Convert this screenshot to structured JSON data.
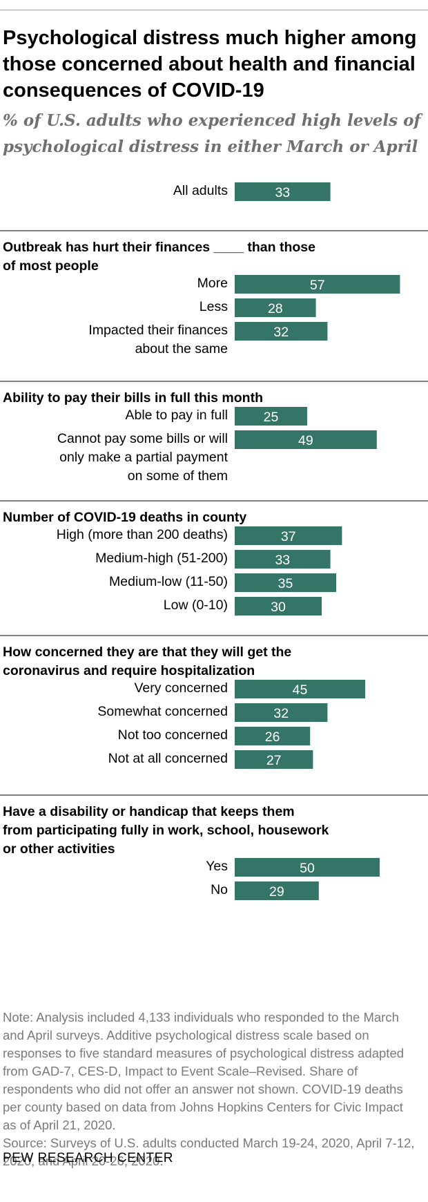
{
  "title": "Psychological distress much higher among those concerned about health and financial consequences of COVID-19",
  "subtitle": "% of U.S. adults who experienced high levels of psychological distress in either March or April",
  "colors": {
    "bar": "#357567",
    "bar_text": "#ffffff",
    "rule": "#000000"
  },
  "chart_data": {
    "type": "bar",
    "orientation": "horizontal",
    "value_labels": true,
    "groups": [
      {
        "heading": "",
        "rows": [
          {
            "label": [
              "All adults"
            ],
            "value": 33
          }
        ]
      },
      {
        "heading": [
          "Outbreak has hurt their finances ____ than those",
          "of most people"
        ],
        "rows": [
          {
            "label": [
              "More"
            ],
            "value": 57
          },
          {
            "label": [
              "Less"
            ],
            "value": 28
          },
          {
            "label": [
              "Impacted their finances",
              "about the same"
            ],
            "value": 32
          }
        ]
      },
      {
        "heading": [
          "Ability to pay their bills in full this month"
        ],
        "rows": [
          {
            "label": [
              "Able to pay in full"
            ],
            "value": 25
          },
          {
            "label": [
              "Cannot pay some bills or will",
              "only make a partial payment",
              "on some of them"
            ],
            "value": 49
          }
        ]
      },
      {
        "heading": [
          "Number of COVID-19 deaths in county"
        ],
        "rows": [
          {
            "label": [
              "High (more than 200 deaths)"
            ],
            "value": 37
          },
          {
            "label": [
              "Medium-high (51-200)"
            ],
            "value": 33
          },
          {
            "label": [
              "Medium-low (11-50)"
            ],
            "value": 35
          },
          {
            "label": [
              "Low (0-10)"
            ],
            "value": 30
          }
        ]
      },
      {
        "heading": [
          "How concerned they are that they will get the",
          "coronavirus and require hospitalization"
        ],
        "rows": [
          {
            "label": [
              "Very concerned"
            ],
            "value": 45
          },
          {
            "label": [
              "Somewhat concerned"
            ],
            "value": 32
          },
          {
            "label": [
              "Not too concerned"
            ],
            "value": 26
          },
          {
            "label": [
              "Not at all concerned"
            ],
            "value": 27
          }
        ]
      },
      {
        "heading": [
          "Have a disability or handicap that keeps them",
          "from participating fully in work, school, housework",
          "or other activities"
        ],
        "rows": [
          {
            "label": [
              "Yes"
            ],
            "value": 50
          },
          {
            "label": [
              "No"
            ],
            "value": 29
          }
        ]
      }
    ]
  },
  "note": "Note: Analysis included 4,133 individuals who responded to the March and April surveys. Additive psychological distress scale based on responses to five standard measures of psychological distress adapted from GAD-7, CES-D, Impact to Event Scale–Revised. Share of respondents who did not offer an answer not shown. COVID-19 deaths per county based on data from Johns Hopkins Centers for Civic Impact as of April 21, 2020.",
  "source": "Source: Surveys of  U.S. adults conducted March 19-24, 2020, April 7-12, 2020, and April 20-26, 2020.",
  "brand": "PEW RESEARCH CENTER"
}
